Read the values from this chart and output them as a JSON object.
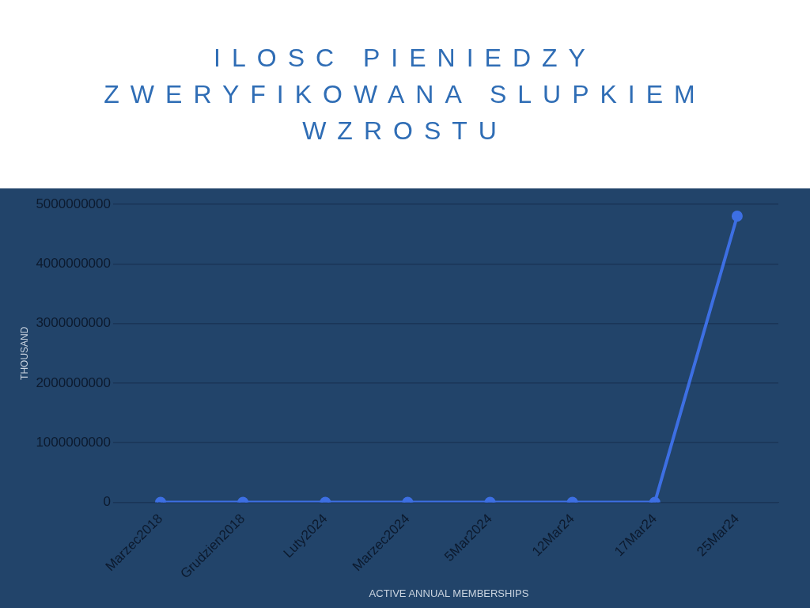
{
  "chart_data": {
    "type": "line",
    "title": "ILOSC PIENIEDZY ZWERYFIKOWANA SLUPKIEM WZROSTU",
    "xlabel": "ACTIVE ANNUAL MEMBERSHIPS",
    "ylabel": "THOUSAND",
    "categories": [
      "Marzec2018",
      "Grudzien2018",
      "Luty2024",
      "Marzec2024",
      "5Mar2024",
      "12Mar24",
      "17Mar24",
      "25Mar24"
    ],
    "series": [
      {
        "color": "#3d6fe3",
        "values": [
          0,
          0,
          0,
          0,
          0,
          0,
          0,
          4800000000
        ]
      }
    ],
    "ylim": [
      0,
      5000000000
    ],
    "yticks": [
      0,
      1000000000,
      2000000000,
      3000000000,
      4000000000,
      5000000000
    ],
    "grid": "y",
    "marker": "circle",
    "legend": false
  }
}
